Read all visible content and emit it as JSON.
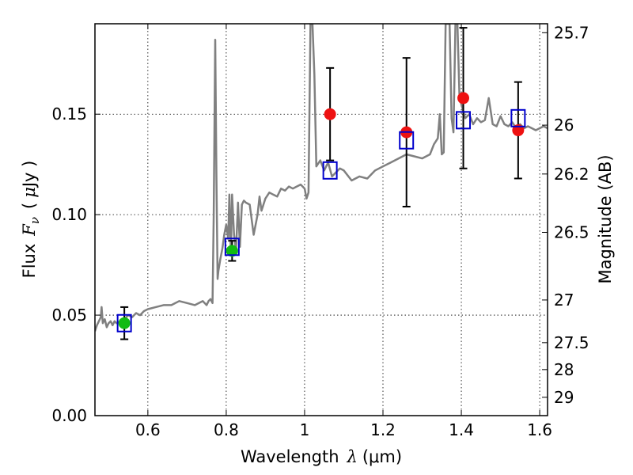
{
  "chart_data": {
    "type": "scatter",
    "xlabel_text": "Wavelength",
    "xlabel_symbol": "λ",
    "xlabel_unit": "(μm)",
    "ylabel_text": "Flux",
    "ylabel_symbol": "F",
    "ylabel_subscript": "ν",
    "ylabel_unit_open": "(",
    "ylabel_unit_mu": "μ",
    "ylabel_unit_rest": "Jy )",
    "y2label": "Magnitude (AB)",
    "xlim": [
      0.465,
      1.62
    ],
    "ylim": [
      0.0,
      0.195
    ],
    "grid": true,
    "grid_style": "dotted",
    "x_ticks": [
      {
        "value": 0.6,
        "label": "0.6"
      },
      {
        "value": 0.8,
        "label": "0.8"
      },
      {
        "value": 1.0,
        "label": "1"
      },
      {
        "value": 1.2,
        "label": "1.2"
      },
      {
        "value": 1.4,
        "label": "1.4"
      },
      {
        "value": 1.6,
        "label": "1.6"
      }
    ],
    "y_ticks": [
      {
        "value": 0.0,
        "label": "0.00"
      },
      {
        "value": 0.05,
        "label": "0.05"
      },
      {
        "value": 0.1,
        "label": "0.10"
      },
      {
        "value": 0.15,
        "label": "0.15"
      }
    ],
    "mag_ticks": [
      {
        "value": 25.7,
        "label": "25.7"
      },
      {
        "value": 26.0,
        "label": "26"
      },
      {
        "value": 26.2,
        "label": "26.2"
      },
      {
        "value": 26.5,
        "label": "26.5"
      },
      {
        "value": 27.0,
        "label": "27"
      },
      {
        "value": 27.5,
        "label": "27.5"
      },
      {
        "value": 28.0,
        "label": "28"
      },
      {
        "value": 29.0,
        "label": "29"
      }
    ],
    "series": [
      {
        "name": "model-spectrum",
        "kind": "line",
        "color": "#808080",
        "x": [
          0.465,
          0.47,
          0.475,
          0.48,
          0.482,
          0.485,
          0.49,
          0.495,
          0.5,
          0.505,
          0.51,
          0.515,
          0.52,
          0.53,
          0.54,
          0.55,
          0.56,
          0.57,
          0.58,
          0.59,
          0.6,
          0.62,
          0.64,
          0.66,
          0.68,
          0.7,
          0.72,
          0.74,
          0.75,
          0.755,
          0.76,
          0.765,
          0.768,
          0.772,
          0.775,
          0.778,
          0.78,
          0.785,
          0.79,
          0.795,
          0.8,
          0.805,
          0.808,
          0.812,
          0.815,
          0.82,
          0.825,
          0.83,
          0.835,
          0.84,
          0.845,
          0.85,
          0.86,
          0.87,
          0.88,
          0.885,
          0.89,
          0.9,
          0.91,
          0.92,
          0.93,
          0.94,
          0.95,
          0.96,
          0.97,
          0.98,
          0.99,
          1.0,
          1.005,
          1.01,
          1.015,
          1.02,
          1.025,
          1.03,
          1.04,
          1.05,
          1.06,
          1.07,
          1.08,
          1.09,
          1.1,
          1.12,
          1.14,
          1.16,
          1.18,
          1.2,
          1.22,
          1.24,
          1.26,
          1.28,
          1.3,
          1.32,
          1.33,
          1.34,
          1.345,
          1.35,
          1.355,
          1.36,
          1.365,
          1.37,
          1.375,
          1.38,
          1.385,
          1.39,
          1.395,
          1.4,
          1.41,
          1.42,
          1.43,
          1.44,
          1.45,
          1.46,
          1.47,
          1.48,
          1.49,
          1.5,
          1.51,
          1.52,
          1.53,
          1.54,
          1.55,
          1.56,
          1.57,
          1.58,
          1.59,
          1.6,
          1.61,
          1.62
        ],
        "y": [
          0.042,
          0.045,
          0.047,
          0.049,
          0.054,
          0.046,
          0.048,
          0.044,
          0.046,
          0.047,
          0.045,
          0.047,
          0.046,
          0.047,
          0.048,
          0.05,
          0.049,
          0.051,
          0.05,
          0.052,
          0.053,
          0.054,
          0.055,
          0.055,
          0.057,
          0.056,
          0.055,
          0.057,
          0.055,
          0.057,
          0.058,
          0.056,
          0.1,
          0.187,
          0.12,
          0.068,
          0.072,
          0.078,
          0.083,
          0.09,
          0.095,
          0.088,
          0.11,
          0.08,
          0.11,
          0.09,
          0.082,
          0.106,
          0.084,
          0.105,
          0.107,
          0.106,
          0.105,
          0.09,
          0.1,
          0.109,
          0.102,
          0.108,
          0.111,
          0.11,
          0.109,
          0.113,
          0.112,
          0.114,
          0.113,
          0.114,
          0.115,
          0.113,
          0.108,
          0.111,
          0.195,
          0.195,
          0.17,
          0.124,
          0.127,
          0.122,
          0.126,
          0.119,
          0.121,
          0.123,
          0.122,
          0.117,
          0.119,
          0.118,
          0.122,
          0.124,
          0.126,
          0.128,
          0.13,
          0.129,
          0.128,
          0.13,
          0.135,
          0.138,
          0.15,
          0.13,
          0.131,
          0.195,
          0.195,
          0.195,
          0.148,
          0.141,
          0.195,
          0.195,
          0.16,
          0.155,
          0.148,
          0.15,
          0.145,
          0.148,
          0.146,
          0.147,
          0.158,
          0.145,
          0.144,
          0.149,
          0.145,
          0.144,
          0.146,
          0.143,
          0.145,
          0.143,
          0.144,
          0.143,
          0.142,
          0.143,
          0.144,
          0.143
        ]
      },
      {
        "name": "model-photometry",
        "kind": "open-square",
        "color": "#0000cc",
        "x": [
          0.54,
          0.815,
          1.065,
          1.26,
          1.405,
          1.545
        ],
        "y": [
          0.046,
          0.084,
          0.122,
          0.137,
          0.147,
          0.148
        ]
      },
      {
        "name": "observed-optical",
        "kind": "filled-circle",
        "color": "#11bb11",
        "x": [
          0.54,
          0.815
        ],
        "y": [
          0.046,
          0.082
        ],
        "yerr": [
          0.008,
          0.005
        ]
      },
      {
        "name": "observed-nir",
        "kind": "filled-circle",
        "color": "#ee1111",
        "x": [
          1.065,
          1.26,
          1.405,
          1.545
        ],
        "y": [
          0.15,
          0.141,
          0.158,
          0.142
        ],
        "yerr": [
          0.023,
          0.037,
          0.035,
          0.024
        ]
      }
    ]
  }
}
